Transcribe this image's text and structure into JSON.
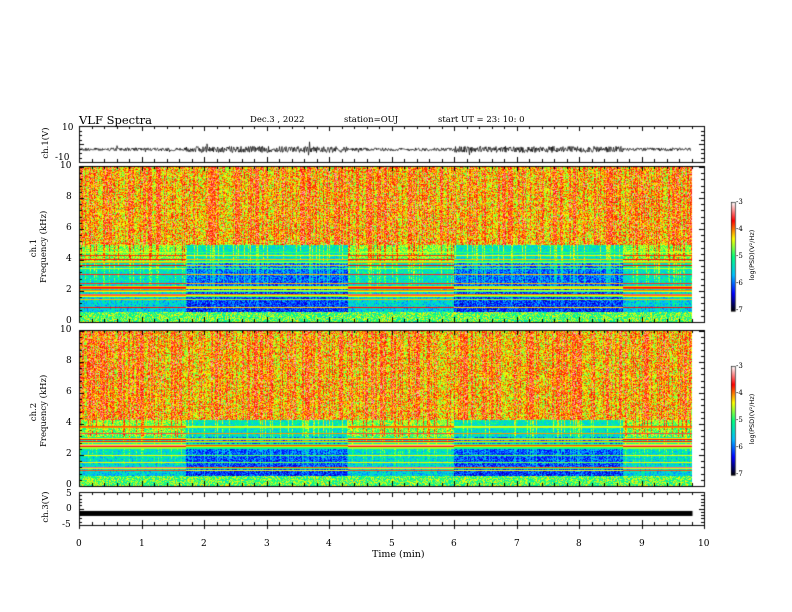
{
  "header": {
    "title": "VLF Spectra",
    "date": "Dec.3 , 2022",
    "station": "station=OUJ",
    "start": "start UT = 23: 10: 0"
  },
  "colors": {
    "waveform": "#000000",
    "colormap": [
      "#000000",
      "#0000ff",
      "#00bfff",
      "#00ff80",
      "#ffff00",
      "#ff0000",
      "#ffffff"
    ]
  },
  "chart_data": [
    {
      "type": "line",
      "name": "ch.1 waveform",
      "ylabel": "ch.1(V)",
      "ylim": [
        -10,
        10
      ],
      "yticks": [
        "10",
        "-10"
      ],
      "xlim": [
        0,
        10
      ],
      "description_level": "noisy signal around -3 V with amplitude ~1 V and bursts"
    },
    {
      "type": "heatmap",
      "name": "ch.1 spectrogram",
      "ylabel_top": "ch.1",
      "ylabel": "Frequency (kHz)",
      "ylim": [
        0,
        10
      ],
      "yticks": [
        "0",
        "2",
        "4",
        "6",
        "8",
        "10"
      ],
      "xlim": [
        0,
        10
      ],
      "data_end_min": 9.8,
      "low_freq_band_khz": [
        0,
        4.5
      ],
      "colorbar": {
        "label": "log(PSD)(V²/Hz)",
        "range": [
          -7,
          -3
        ],
        "ticks": [
          "-3",
          "-4",
          "-5",
          "-6",
          "-7"
        ]
      }
    },
    {
      "type": "heatmap",
      "name": "ch.2 spectrogram",
      "ylabel_top": "ch.2",
      "ylabel": "Frequency (kHz)",
      "ylim": [
        0,
        10
      ],
      "yticks": [
        "0",
        "2",
        "4",
        "6",
        "8",
        "10"
      ],
      "xlim": [
        0,
        10
      ],
      "data_end_min": 9.8,
      "low_freq_band_khz": [
        0,
        3.8
      ],
      "colorbar": {
        "label": "log(PSD)(V²/Hz)",
        "range": [
          -7,
          -3
        ],
        "ticks": [
          "-3",
          "-4",
          "-5",
          "-6",
          "-7"
        ]
      }
    },
    {
      "type": "line",
      "name": "ch.3 signal",
      "ylabel": "ch.3(V)",
      "ylim": [
        -5,
        5
      ],
      "yticks": [
        "5",
        "0",
        "-5"
      ],
      "xlim": [
        0,
        10
      ],
      "level_v": -1.5
    }
  ],
  "xaxis": {
    "label": "Time (min)",
    "ticks": [
      "0",
      "1",
      "2",
      "3",
      "4",
      "5",
      "6",
      "7",
      "8",
      "9",
      "10"
    ]
  },
  "segments_min": [
    {
      "start": 0.0,
      "end": 1.7,
      "quiet": true
    },
    {
      "start": 1.7,
      "end": 4.3,
      "quiet": false
    },
    {
      "start": 4.3,
      "end": 6.0,
      "quiet": true
    },
    {
      "start": 6.0,
      "end": 8.7,
      "quiet": false
    },
    {
      "start": 8.7,
      "end": 9.8,
      "quiet": true
    }
  ]
}
